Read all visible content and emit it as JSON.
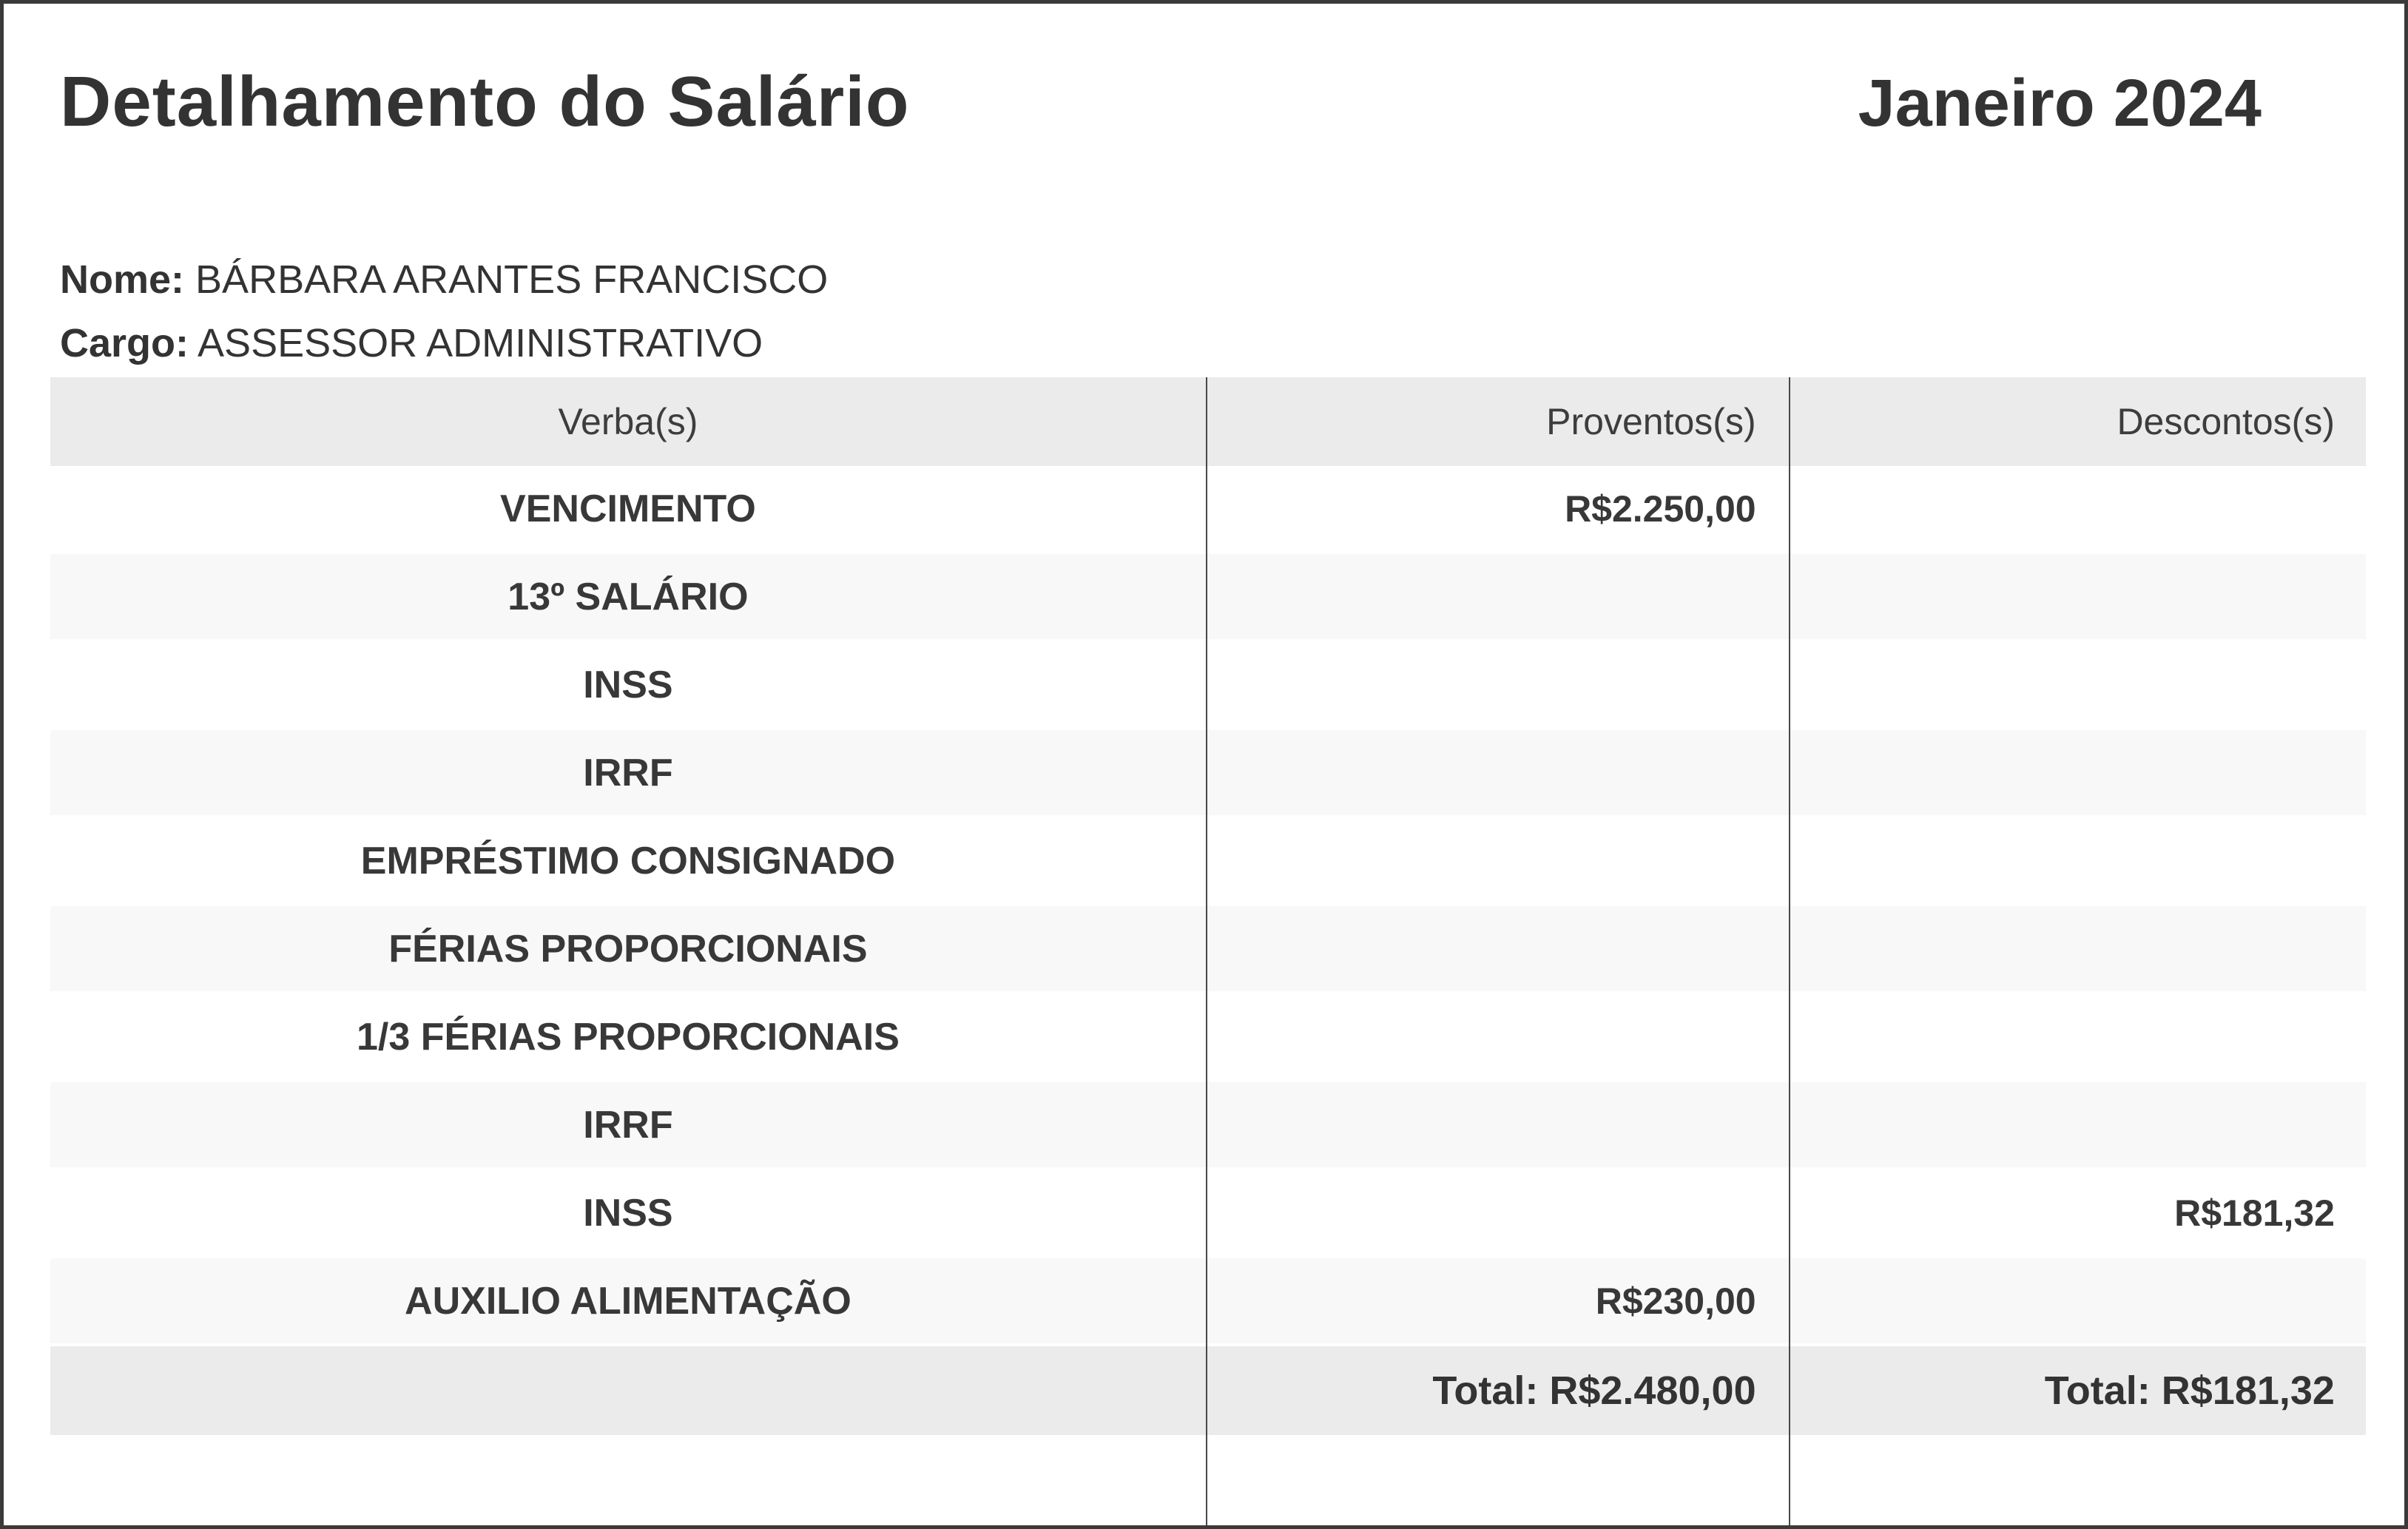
{
  "page": {
    "title": "Detalhamento do Salário",
    "period": "Janeiro 2024"
  },
  "employee": {
    "nome_label": "Nome:",
    "nome": "BÁRBARA ARANTES FRANCISCO",
    "cargo_label": "Cargo:",
    "cargo": "ASSESSOR ADMINISTRATIVO"
  },
  "table": {
    "headers": [
      "Verba(s)",
      "Proventos(s)",
      "Descontos(s)"
    ],
    "rows": [
      {
        "verba": "VENCIMENTO",
        "proventos": "R$2.250,00",
        "descontos": ""
      },
      {
        "verba": "13º SALÁRIO",
        "proventos": "",
        "descontos": ""
      },
      {
        "verba": "INSS",
        "proventos": "",
        "descontos": ""
      },
      {
        "verba": "IRRF",
        "proventos": "",
        "descontos": ""
      },
      {
        "verba": "EMPRÉSTIMO CONSIGNADO",
        "proventos": "",
        "descontos": ""
      },
      {
        "verba": "FÉRIAS PROPORCIONAIS",
        "proventos": "",
        "descontos": ""
      },
      {
        "verba": "1/3 FÉRIAS PROPORCIONAIS",
        "proventos": "",
        "descontos": ""
      },
      {
        "verba": "IRRF",
        "proventos": "",
        "descontos": ""
      },
      {
        "verba": "INSS",
        "proventos": "",
        "descontos": "R$181,32"
      },
      {
        "verba": "AUXILIO ALIMENTAÇÃO",
        "proventos": "R$230,00",
        "descontos": ""
      }
    ],
    "totals": {
      "proventos": "Total: R$2.480,00",
      "descontos": "Total: R$181,32"
    }
  },
  "colors": {
    "text": "#333333",
    "header_bg": "#ebebeb",
    "alt_row_bg": "#f8f8f8",
    "total_row_bg": "#ebebeb",
    "divider": "#46484a",
    "page_border": "#3a3a3a"
  }
}
